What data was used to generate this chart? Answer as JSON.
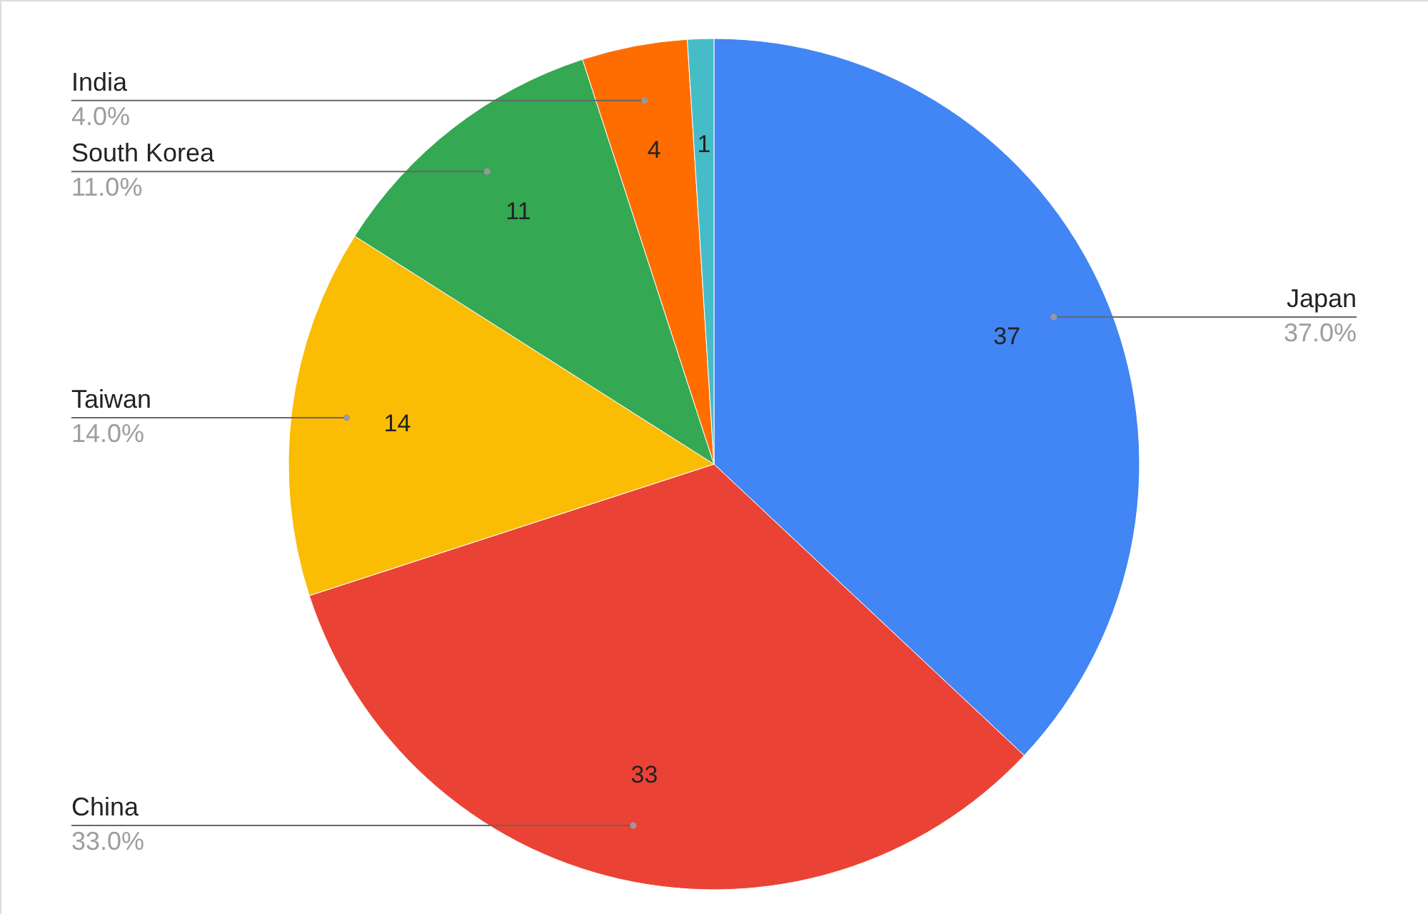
{
  "chart_data": {
    "type": "pie",
    "categories": [
      "Japan",
      "China",
      "Taiwan",
      "South Korea",
      "India",
      null
    ],
    "values": [
      37,
      33,
      14,
      11,
      4,
      1
    ],
    "colors": [
      "#4285f4",
      "#ea4335",
      "#fbbc04",
      "#34a853",
      "#ff6d01",
      "#46bdc6"
    ],
    "value_labels": [
      "37",
      "33",
      "14",
      "11",
      "4",
      "1"
    ],
    "annotations": [
      "37.0%",
      "33.0%",
      "14.0%",
      "11.0%",
      "4.0%"
    ]
  }
}
